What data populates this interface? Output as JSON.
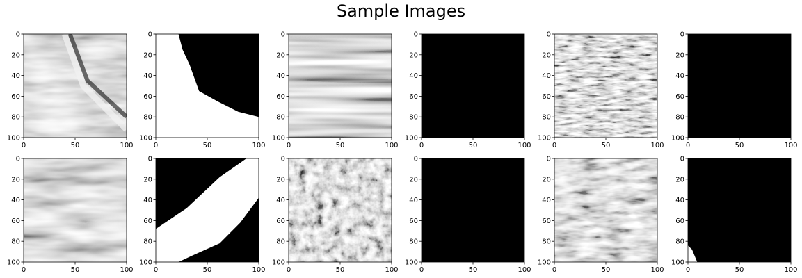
{
  "title": "Sample Images",
  "chart_data": {
    "type": "heatmap",
    "title": "Sample Images",
    "grid": false,
    "rows": 2,
    "cols": 6,
    "xlim": [
      0,
      100
    ],
    "ylim": [
      100,
      0
    ],
    "xticks": [
      "0",
      "50",
      "100"
    ],
    "yticks": [
      "0",
      "20",
      "40",
      "60",
      "80",
      "100"
    ],
    "panels": [
      {
        "row": 0,
        "col": 0,
        "kind": "image",
        "content": "seismic",
        "texture": "salt-flank"
      },
      {
        "row": 0,
        "col": 1,
        "kind": "mask",
        "content": "mask",
        "fill_from_x": [
          22,
          26,
          33,
          42,
          60,
          80,
          100
        ],
        "fill_at_y": [
          0,
          15,
          30,
          55,
          65,
          75,
          80
        ]
      },
      {
        "row": 0,
        "col": 2,
        "kind": "image",
        "content": "seismic",
        "texture": "horizontal-bands"
      },
      {
        "row": 0,
        "col": 3,
        "kind": "mask",
        "content": "mask",
        "coverage": 0
      },
      {
        "row": 0,
        "col": 4,
        "kind": "image",
        "content": "seismic",
        "texture": "noisy-diagonal"
      },
      {
        "row": 0,
        "col": 5,
        "kind": "mask",
        "content": "mask",
        "coverage": 0
      },
      {
        "row": 1,
        "col": 0,
        "kind": "image",
        "content": "seismic",
        "texture": "wavy-layers"
      },
      {
        "row": 1,
        "col": 1,
        "kind": "mask",
        "content": "mask",
        "band": "diagonal"
      },
      {
        "row": 1,
        "col": 2,
        "kind": "image",
        "content": "seismic",
        "texture": "noisy"
      },
      {
        "row": 1,
        "col": 3,
        "kind": "mask",
        "content": "mask",
        "coverage": 0
      },
      {
        "row": 1,
        "col": 4,
        "kind": "image",
        "content": "seismic",
        "texture": "curved-layers"
      },
      {
        "row": 1,
        "col": 5,
        "kind": "mask",
        "content": "mask",
        "corner": "bottom-left"
      }
    ]
  },
  "colors": {
    "mask_on": "#ffffff",
    "mask_off": "#000000",
    "axis": "#000000"
  }
}
